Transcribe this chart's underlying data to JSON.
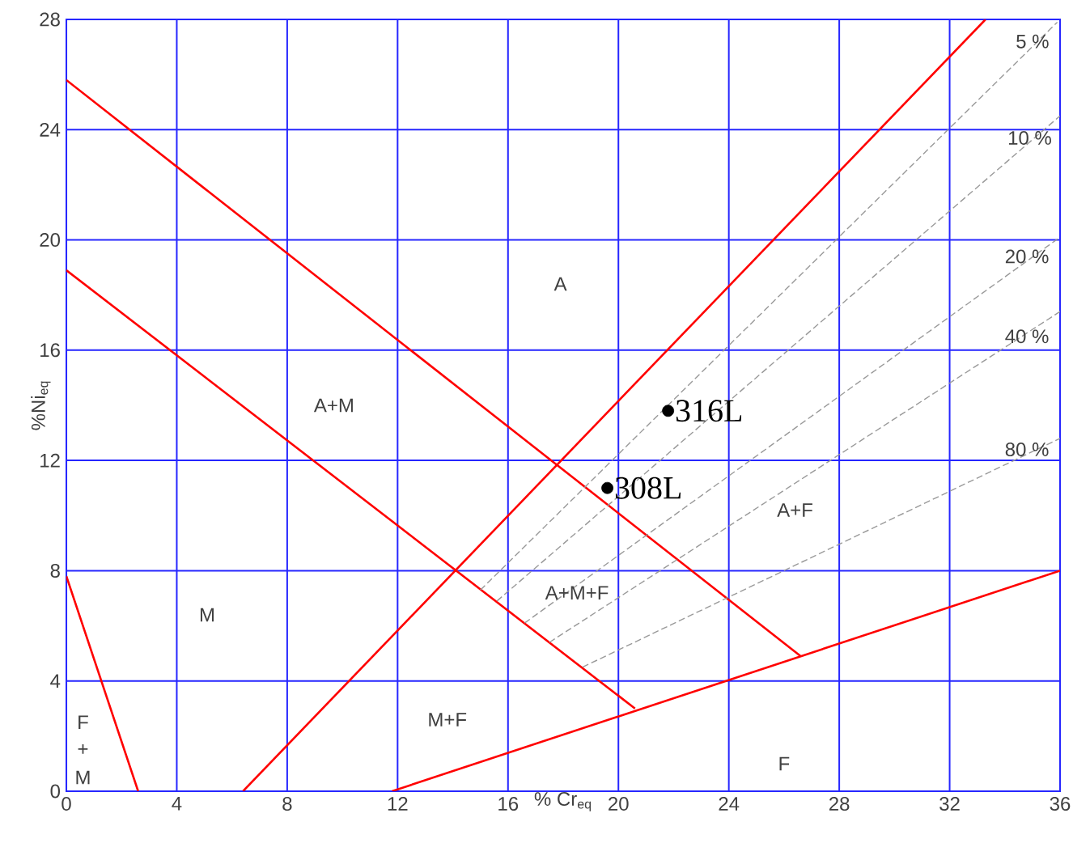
{
  "chart_data": {
    "type": "line",
    "xlabel": "% Cr$_{eq}$",
    "ylabel": "%Ni$_{eq}$",
    "xlim": [
      0,
      36
    ],
    "ylim": [
      0,
      28
    ],
    "xticks": [
      0,
      4,
      8,
      12,
      16,
      20,
      24,
      28,
      32,
      36
    ],
    "yticks": [
      0,
      4,
      8,
      12,
      16,
      20,
      24,
      28
    ],
    "grid": true,
    "series": [
      {
        "color": "#ff0000",
        "line_style": "solid",
        "x": [
          0,
          26.6
        ],
        "values": [
          25.8,
          4.9
        ]
      },
      {
        "color": "#ff0000",
        "line_style": "solid",
        "x": [
          0,
          20.6
        ],
        "values": [
          18.9,
          3.0
        ]
      },
      {
        "color": "#ff0000",
        "line_style": "solid",
        "x": [
          6.4,
          33.3
        ],
        "values": [
          0,
          28
        ]
      },
      {
        "color": "#ff0000",
        "line_style": "solid",
        "x": [
          0,
          2.6
        ],
        "values": [
          7.8,
          0
        ]
      },
      {
        "color": "#ff0000",
        "line_style": "solid",
        "x": [
          11.8,
          36
        ],
        "values": [
          0,
          8
        ]
      },
      {
        "color": "#999999",
        "line_style": "dashed",
        "x": [
          15.0,
          35.9
        ],
        "values": [
          7.3,
          27.9
        ]
      },
      {
        "color": "#999999",
        "line_style": "dashed",
        "x": [
          15.6,
          36
        ],
        "values": [
          6.9,
          24.5
        ]
      },
      {
        "color": "#999999",
        "line_style": "dashed",
        "x": [
          16.6,
          36
        ],
        "values": [
          6.1,
          20.1
        ]
      },
      {
        "color": "#999999",
        "line_style": "dashed",
        "x": [
          17.5,
          36
        ],
        "values": [
          5.4,
          17.4
        ]
      },
      {
        "color": "#999999",
        "line_style": "dashed",
        "x": [
          18.7,
          36
        ],
        "values": [
          4.5,
          12.8
        ]
      },
      {
        "type": "scatter",
        "name": "308L",
        "color": "#000000",
        "marker": "circle",
        "x": [
          19.6
        ],
        "values": [
          11.0
        ]
      },
      {
        "type": "scatter",
        "name": "316L",
        "color": "#000000",
        "marker": "circle",
        "x": [
          21.8
        ],
        "values": [
          13.8
        ]
      }
    ],
    "annotations": [
      {
        "text": "5 %",
        "x": 35.0,
        "y": 27.2
      },
      {
        "text": "10 %",
        "x": 34.9,
        "y": 23.7
      },
      {
        "text": "20 %",
        "x": 34.8,
        "y": 19.4
      },
      {
        "text": "40 %",
        "x": 34.8,
        "y": 16.5
      },
      {
        "text": "80 %",
        "x": 34.8,
        "y": 12.4
      },
      "A",
      "A+M",
      "M",
      "F",
      "+",
      "M",
      "M+F",
      "A+M+F",
      "A+F",
      "F"
    ]
  }
}
